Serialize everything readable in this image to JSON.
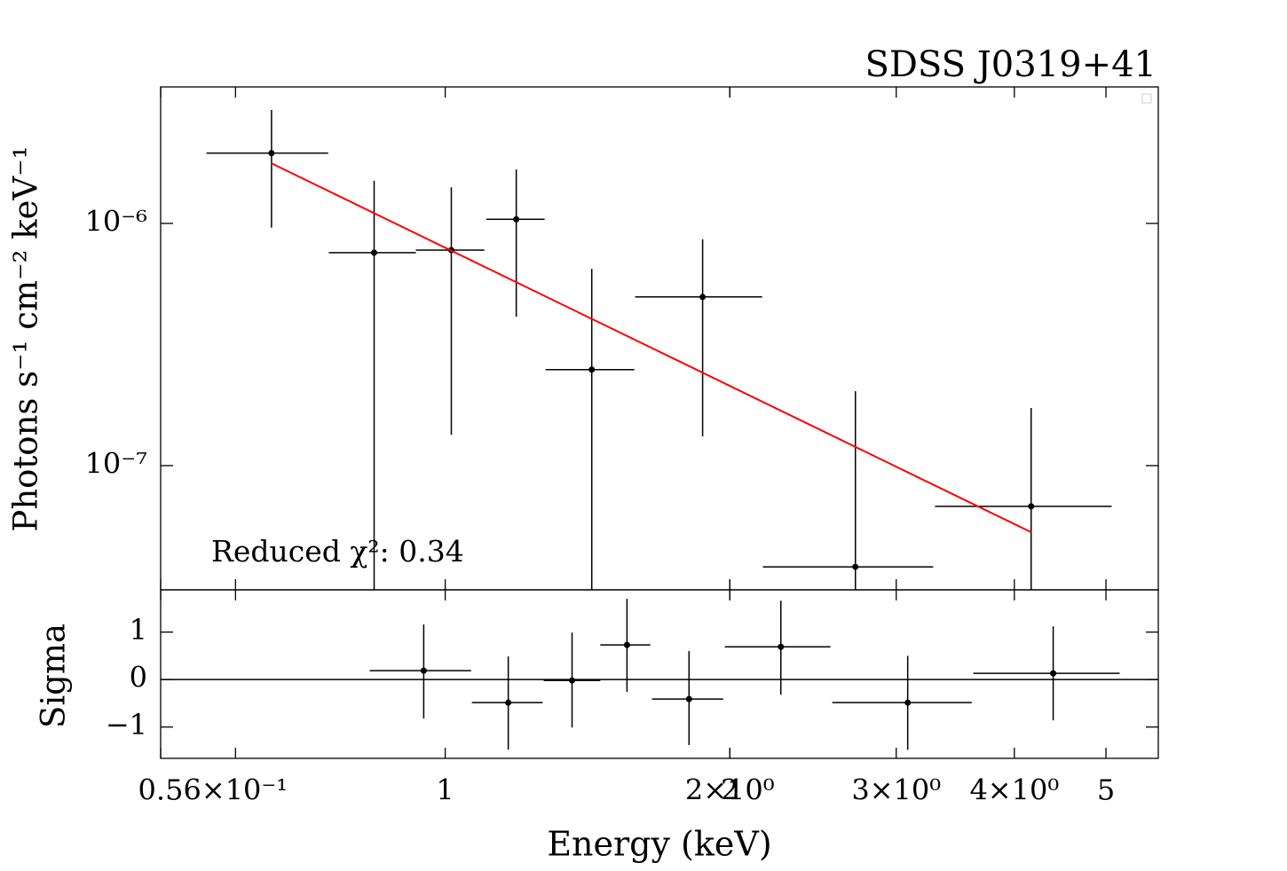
{
  "chart_data": [
    {
      "type": "errorbar",
      "title": "SDSS J0319+41",
      "ylabel": "Photons s⁻¹ cm⁻² keV⁻¹",
      "annotation": "Reduced χ²: 0.34",
      "xscale": "log",
      "yscale": "log",
      "xlim": [
        0.5,
        5.68
      ],
      "ylim": [
        3.07e-08,
        3.66e-06
      ],
      "yticks": [
        {
          "value": 1e-06,
          "label": "10⁻⁶"
        },
        {
          "value": 1e-07,
          "label": "10⁻⁷"
        }
      ],
      "series": [
        {
          "kind": "errorbar",
          "color": "#000000",
          "x": [
            0.655,
            0.841,
            1.015,
            1.189,
            1.429,
            1.872,
            2.716,
            4.167
          ],
          "x_low": [
            0.559,
            0.753,
            0.931,
            1.105,
            1.277,
            1.588,
            2.168,
            3.297
          ],
          "x_high": [
            0.752,
            0.931,
            1.1,
            1.274,
            1.585,
            2.164,
            3.283,
            5.07
          ],
          "values": [
            1.95e-06,
            7.57e-07,
            7.76e-07,
            1.04e-06,
            2.49e-07,
            4.97e-07,
            3.82e-08,
            6.79e-08
          ],
          "y_low": [
            9.6e-07,
            1e-08,
            1.34e-07,
            4.12e-07,
            1e-08,
            1.32e-07,
            1e-08,
            1e-08
          ],
          "y_high": [
            2.94e-06,
            1.5e-06,
            1.41e-06,
            1.67e-06,
            6.5e-07,
            8.6e-07,
            2.03e-07,
            1.73e-07
          ]
        },
        {
          "kind": "line",
          "color": "#ff0000",
          "x": [
            0.655,
            4.167
          ],
          "values": [
            1.77e-06,
            5.31e-08
          ]
        }
      ]
    },
    {
      "type": "errorbar",
      "ylabel": "Sigma",
      "xlabel": "Energy (keV)",
      "xscale": "log",
      "xlim": [
        0.5,
        5.68
      ],
      "ylim": [
        -1.66,
        1.89
      ],
      "xticks": [
        0.5,
        {
          "value": 0.6,
          "label": "6×10⁻¹"
        },
        1,
        2,
        {
          "value": 2,
          "label": "2×10⁰"
        },
        {
          "value": 3,
          "label": "3×10⁰"
        },
        {
          "value": 4,
          "label": "4×10⁰"
        },
        5
      ],
      "yticks": [
        {
          "value": -1,
          "label": "−1"
        },
        0,
        1
      ],
      "hline": 0,
      "series": [
        {
          "kind": "errorbar",
          "color": "#000000",
          "x": [
            0.949,
            1.166,
            1.362,
            1.557,
            1.811,
            2.265,
            3.085,
            4.397
          ],
          "x_low": [
            0.832,
            1.067,
            1.271,
            1.459,
            1.655,
            1.976,
            2.567,
            3.62
          ],
          "x_high": [
            1.065,
            1.268,
            1.459,
            1.648,
            1.968,
            2.556,
            3.606,
            5.17
          ],
          "values": [
            0.187,
            -0.486,
            -0.019,
            0.729,
            -0.411,
            0.69,
            -0.486,
            0.131
          ],
          "y_low": [
            -0.82,
            -1.477,
            -1.01,
            -0.26,
            -1.38,
            -0.32,
            -1.48,
            -0.86
          ],
          "y_high": [
            1.16,
            0.486,
            0.99,
            1.7,
            0.6,
            1.66,
            0.5,
            1.12
          ]
        }
      ]
    }
  ]
}
